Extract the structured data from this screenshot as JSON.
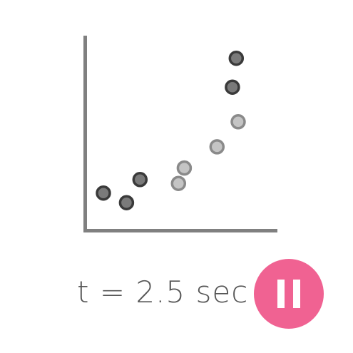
{
  "colors": {
    "axis": "#808080",
    "point_dark_fill": "#7a7a7a",
    "point_dark_stroke": "#3a3a3a",
    "point_light_fill": "#c4c4c4",
    "point_light_stroke": "#8a8a8a",
    "button": "#f06292",
    "button_icon": "#ffffff",
    "text": "#555555"
  },
  "time_readout": {
    "text": "t = 2.5 sec",
    "value": 2.5,
    "unit": "sec"
  },
  "playback": {
    "state": "playing",
    "button_icon": "pause-icon"
  },
  "chart_data": {
    "type": "scatter",
    "title": "",
    "xlabel": "",
    "ylabel": "",
    "grid": false,
    "xlim": [
      0,
      10
    ],
    "ylim": [
      0,
      10
    ],
    "series": [
      {
        "style": "dark",
        "x": [
          1.0,
          2.2,
          2.9,
          7.7,
          7.9
        ],
        "y": [
          1.9,
          1.4,
          2.6,
          7.4,
          8.9
        ]
      },
      {
        "style": "light",
        "x": [
          4.9,
          5.2,
          6.9,
          8.0
        ],
        "y": [
          2.4,
          3.2,
          4.3,
          5.6
        ]
      }
    ]
  }
}
